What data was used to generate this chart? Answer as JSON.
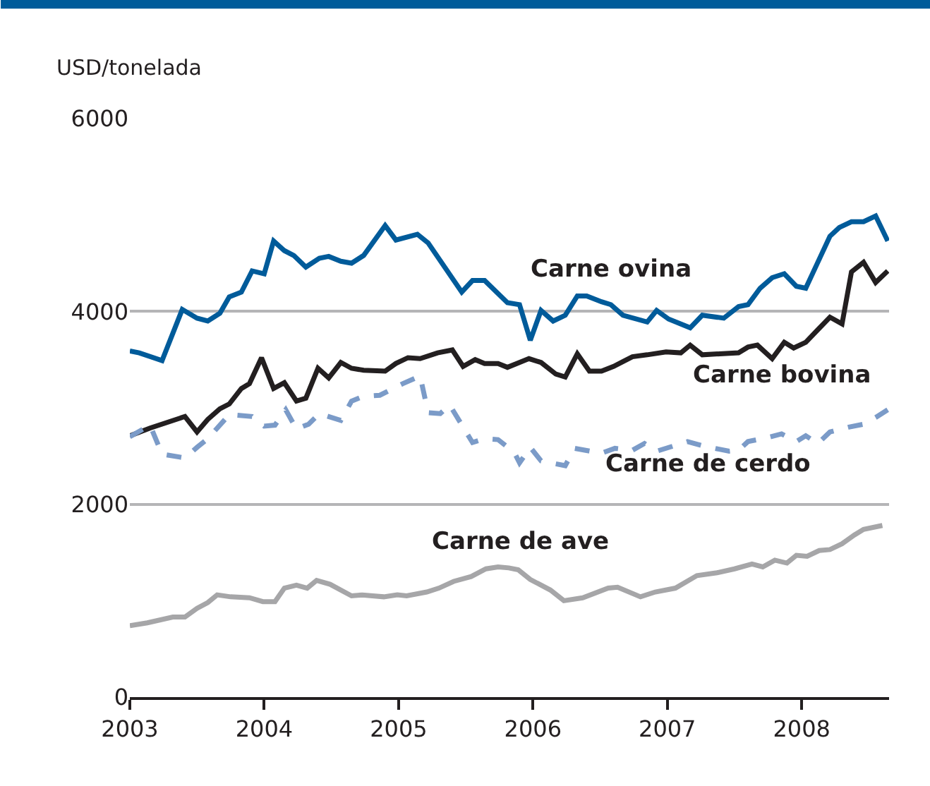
{
  "chart_data": {
    "type": "line",
    "ylabel": "USD/tonelada",
    "xlim": [
      2003,
      2008.65
    ],
    "xticks": [
      2003,
      2004,
      2005,
      2006,
      2007,
      2008
    ],
    "ylim": [
      0,
      6000
    ],
    "yticks": [
      0,
      2000,
      4000,
      6000
    ],
    "grid": "y",
    "legend": false,
    "marker": "none",
    "series": [
      {
        "name": "Carne ovina",
        "color": "#005b9a",
        "line_style": "solid",
        "x": [
          2003.0,
          2003.07,
          2003.24,
          2003.39,
          2003.5,
          2003.58,
          2003.67,
          2003.74,
          2003.83,
          2003.91,
          2004.0,
          2004.07,
          2004.15,
          2004.22,
          2004.31,
          2004.41,
          2004.48,
          2004.57,
          2004.65,
          2004.74,
          2004.9,
          2004.98,
          2005.14,
          2005.22,
          2005.47,
          2005.55,
          2005.64,
          2005.81,
          2005.9,
          2005.98,
          2006.06,
          2006.15,
          2006.24,
          2006.33,
          2006.4,
          2006.51,
          2006.58,
          2006.67,
          2006.85,
          2006.92,
          2007.01,
          2007.17,
          2007.26,
          2007.42,
          2007.53,
          2007.6,
          2007.69,
          2007.78,
          2007.87,
          2007.96,
          2008.03,
          2008.12,
          2008.21,
          2008.28,
          2008.37,
          2008.46,
          2008.55,
          2008.64
        ],
        "values": [
          3590,
          3570,
          3490,
          4020,
          3930,
          3900,
          3980,
          4150,
          4200,
          4420,
          4390,
          4730,
          4630,
          4580,
          4460,
          4550,
          4570,
          4520,
          4500,
          4580,
          4890,
          4740,
          4800,
          4710,
          4200,
          4320,
          4320,
          4090,
          4070,
          3700,
          4010,
          3900,
          3960,
          4160,
          4160,
          4100,
          4070,
          3960,
          3890,
          4010,
          3920,
          3830,
          3960,
          3930,
          4050,
          4070,
          4240,
          4350,
          4390,
          4260,
          4240,
          4510,
          4780,
          4870,
          4930,
          4930,
          4990,
          4730
        ]
      },
      {
        "name": "Carne bovina",
        "color": "#231f20",
        "line_style": "solid",
        "x": [
          2003.0,
          2003.15,
          2003.41,
          2003.5,
          2003.58,
          2003.67,
          2003.74,
          2003.83,
          2003.89,
          2003.98,
          2004.07,
          2004.15,
          2004.24,
          2004.31,
          2004.4,
          2004.48,
          2004.57,
          2004.65,
          2004.74,
          2004.9,
          2004.98,
          2005.07,
          2005.16,
          2005.29,
          2005.4,
          2005.48,
          2005.57,
          2005.64,
          2005.74,
          2005.81,
          2005.97,
          2006.06,
          2006.17,
          2006.24,
          2006.33,
          2006.42,
          2006.51,
          2006.6,
          2006.74,
          2006.85,
          2006.99,
          2007.1,
          2007.17,
          2007.26,
          2007.39,
          2007.53,
          2007.6,
          2007.67,
          2007.78,
          2007.87,
          2007.94,
          2008.03,
          2008.12,
          2008.21,
          2008.3,
          2008.37,
          2008.46,
          2008.55,
          2008.64
        ],
        "values": [
          2710,
          2790,
          2910,
          2750,
          2880,
          2990,
          3040,
          3200,
          3250,
          3520,
          3200,
          3260,
          3070,
          3100,
          3410,
          3310,
          3470,
          3410,
          3390,
          3380,
          3460,
          3520,
          3510,
          3570,
          3600,
          3430,
          3500,
          3460,
          3460,
          3420,
          3510,
          3470,
          3350,
          3320,
          3560,
          3380,
          3380,
          3430,
          3530,
          3550,
          3580,
          3570,
          3650,
          3550,
          3560,
          3570,
          3630,
          3650,
          3510,
          3680,
          3620,
          3680,
          3810,
          3940,
          3870,
          4410,
          4510,
          4300,
          4420
        ]
      },
      {
        "name": "Carne de cerdo",
        "color": "#7b9bc8",
        "line_style": "dashed",
        "x": [
          2003.0,
          2003.15,
          2003.24,
          2003.41,
          2003.5,
          2003.58,
          2003.74,
          2003.91,
          2004.0,
          2004.08,
          2004.16,
          2004.24,
          2004.33,
          2004.41,
          2004.57,
          2004.65,
          2004.74,
          2004.86,
          2005.03,
          2005.16,
          2005.22,
          2005.31,
          2005.38,
          2005.55,
          2005.64,
          2005.74,
          2005.86,
          2005.9,
          2005.98,
          2006.06,
          2006.24,
          2006.31,
          2006.51,
          2006.61,
          2006.74,
          2006.83,
          2006.92,
          2007.15,
          2007.28,
          2007.46,
          2007.53,
          2007.6,
          2007.74,
          2007.85,
          2007.96,
          2008.03,
          2008.12,
          2008.21,
          2008.35,
          2008.46,
          2008.55,
          2008.64
        ],
        "values": [
          2700,
          2820,
          2520,
          2480,
          2590,
          2680,
          2930,
          2910,
          2810,
          2820,
          2980,
          2780,
          2830,
          2940,
          2870,
          3070,
          3120,
          3130,
          3250,
          3330,
          2950,
          2940,
          3030,
          2640,
          2680,
          2670,
          2540,
          2430,
          2590,
          2450,
          2400,
          2580,
          2530,
          2580,
          2560,
          2630,
          2550,
          2650,
          2600,
          2550,
          2560,
          2650,
          2690,
          2730,
          2650,
          2710,
          2630,
          2750,
          2800,
          2830,
          2900,
          2980
        ]
      },
      {
        "name": "Carne de ave",
        "color": "#a6a6a8",
        "line_style": "solid",
        "x": [
          2003.0,
          2003.13,
          2003.32,
          2003.41,
          2003.5,
          2003.58,
          2003.65,
          2003.75,
          2003.89,
          2003.99,
          2004.08,
          2004.15,
          2004.24,
          2004.32,
          2004.39,
          2004.49,
          2004.65,
          2004.73,
          2004.89,
          2004.99,
          2005.06,
          2005.21,
          2005.3,
          2005.41,
          2005.54,
          2005.65,
          2005.74,
          2005.82,
          2005.89,
          2005.98,
          2006.13,
          2006.23,
          2006.37,
          2006.56,
          2006.63,
          2006.8,
          2006.91,
          2007.06,
          2007.22,
          2007.37,
          2007.5,
          2007.63,
          2007.71,
          2007.8,
          2007.89,
          2007.96,
          2008.04,
          2008.13,
          2008.21,
          2008.3,
          2008.39,
          2008.46,
          2008.6
        ],
        "values": [
          740,
          770,
          830,
          830,
          920,
          980,
          1060,
          1040,
          1030,
          990,
          990,
          1130,
          1160,
          1130,
          1210,
          1170,
          1050,
          1060,
          1040,
          1060,
          1050,
          1090,
          1130,
          1200,
          1250,
          1330,
          1350,
          1340,
          1320,
          1220,
          1110,
          1000,
          1030,
          1130,
          1140,
          1040,
          1090,
          1130,
          1260,
          1290,
          1330,
          1380,
          1350,
          1420,
          1390,
          1470,
          1460,
          1520,
          1530,
          1590,
          1680,
          1740,
          1780
        ]
      }
    ]
  }
}
